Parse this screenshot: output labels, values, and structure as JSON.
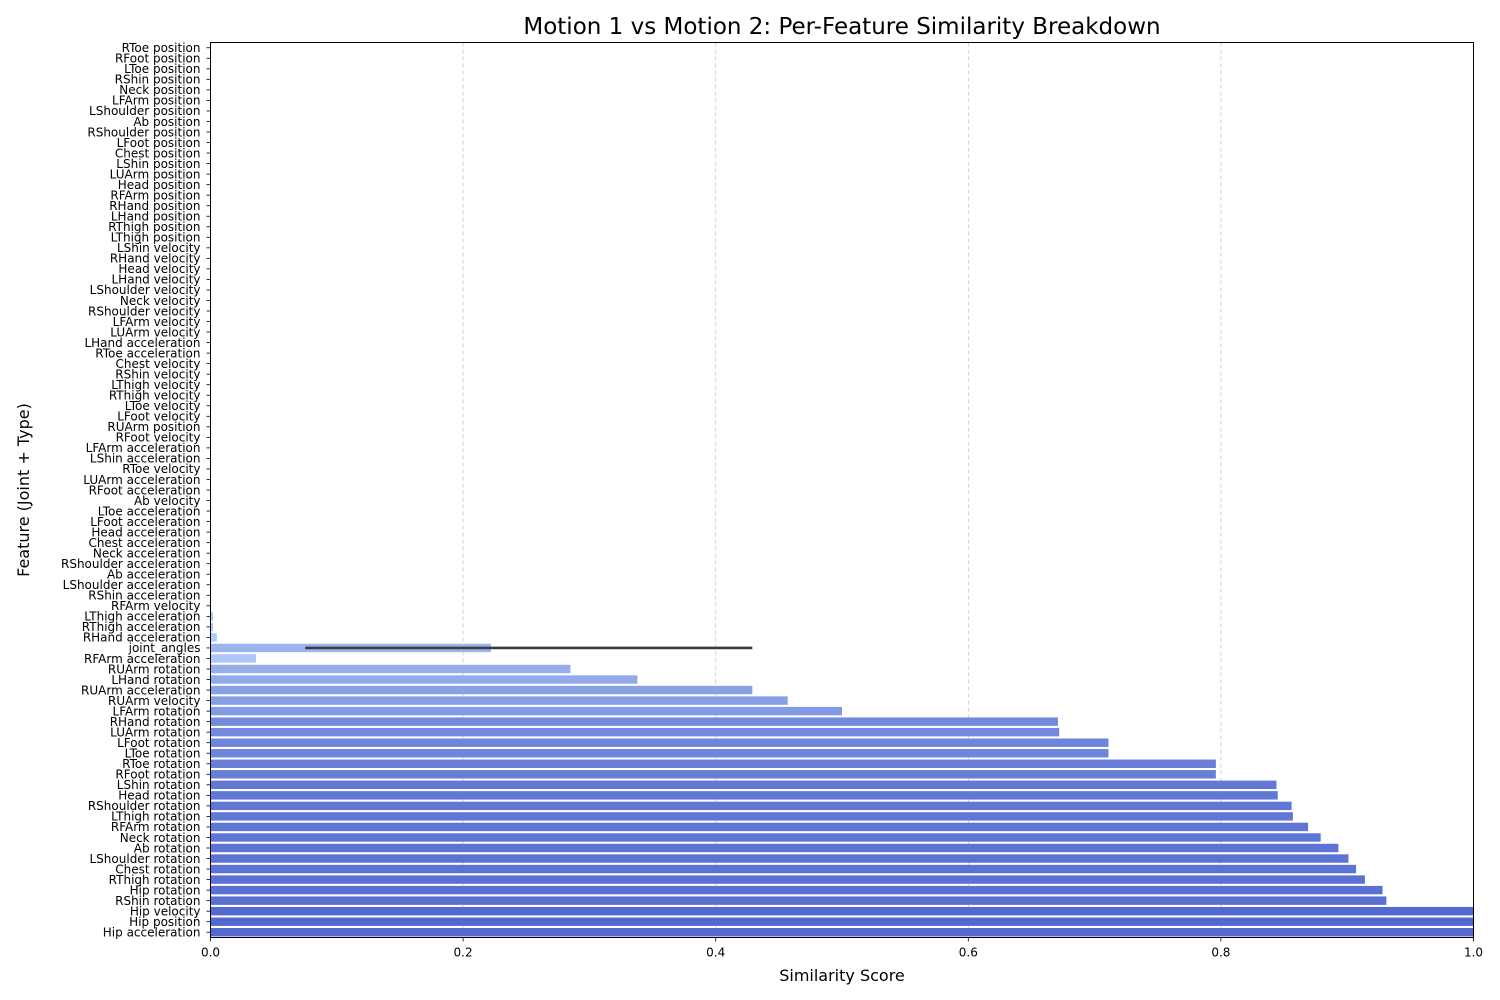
{
  "chart_data": {
    "type": "bar",
    "orientation": "horizontal",
    "title": "Motion 1 vs Motion 2: Per-Feature Similarity Breakdown",
    "xlabel": "Similarity Score",
    "ylabel": "Feature (Joint + Type)",
    "xlim": [
      0,
      1.0
    ],
    "xticks": [
      "0.0",
      "0.2",
      "0.4",
      "0.6",
      "0.8",
      "1.0"
    ],
    "grid": "x-dashed",
    "colormap": "coolwarm-blue",
    "categories": [
      "RToe position",
      "RFoot position",
      "LToe position",
      "RShin position",
      "Neck position",
      "LFArm position",
      "LShoulder position",
      "Ab position",
      "RShoulder position",
      "LFoot position",
      "Chest position",
      "LShin position",
      "LUArm position",
      "Head position",
      "RFArm position",
      "RHand position",
      "LHand position",
      "RThigh position",
      "LThigh position",
      "LShin velocity",
      "RHand velocity",
      "Head velocity",
      "LHand velocity",
      "LShoulder velocity",
      "Neck velocity",
      "RShoulder velocity",
      "LFArm velocity",
      "LUArm velocity",
      "LHand acceleration",
      "RToe acceleration",
      "Chest velocity",
      "RShin velocity",
      "LThigh velocity",
      "RThigh velocity",
      "LToe velocity",
      "LFoot velocity",
      "RUArm position",
      "RFoot velocity",
      "LFArm acceleration",
      "LShin acceleration",
      "RToe velocity",
      "LUArm acceleration",
      "RFoot acceleration",
      "Ab velocity",
      "LToe acceleration",
      "LFoot acceleration",
      "Head acceleration",
      "Chest acceleration",
      "Neck acceleration",
      "RShoulder acceleration",
      "Ab acceleration",
      "LShoulder acceleration",
      "RShin acceleration",
      "RFArm velocity",
      "LThigh acceleration",
      "RThigh acceleration",
      "RHand acceleration",
      "joint_angles",
      "RFArm acceleration",
      "RUArm rotation",
      "LHand rotation",
      "RUArm acceleration",
      "RUArm velocity",
      "LFArm rotation",
      "RHand rotation",
      "LUArm rotation",
      "LFoot rotation",
      "LToe rotation",
      "RToe rotation",
      "RFoot rotation",
      "LShin rotation",
      "Head rotation",
      "RShoulder rotation",
      "LThigh rotation",
      "RFArm rotation",
      "Neck rotation",
      "Ab rotation",
      "LShoulder rotation",
      "Chest rotation",
      "RThigh rotation",
      "Hip rotation",
      "RShin rotation",
      "Hip velocity",
      "Hip position",
      "Hip acceleration"
    ],
    "values": [
      0,
      0,
      0,
      0,
      0,
      0,
      0,
      0,
      0,
      0,
      0,
      0,
      0,
      0,
      0,
      0,
      0,
      0,
      0,
      0,
      0,
      0,
      0,
      0,
      0,
      0,
      0,
      0,
      0,
      0,
      0,
      0,
      0,
      0,
      0,
      0,
      0,
      0,
      0,
      0,
      0,
      0,
      0,
      0,
      0,
      0,
      0,
      0,
      0,
      0,
      0,
      0,
      0,
      0.0005,
      0.002,
      0.002,
      0.005,
      0.222,
      0.036,
      0.285,
      0.338,
      0.429,
      0.457,
      0.5,
      0.671,
      0.672,
      0.711,
      0.711,
      0.796,
      0.796,
      0.844,
      0.845,
      0.856,
      0.857,
      0.869,
      0.879,
      0.893,
      0.901,
      0.907,
      0.914,
      0.928,
      0.931,
      1.0,
      1.0,
      1.0
    ],
    "error_bars": [
      {
        "category": "joint_angles",
        "low": 0.075,
        "high": 0.429
      }
    ]
  }
}
